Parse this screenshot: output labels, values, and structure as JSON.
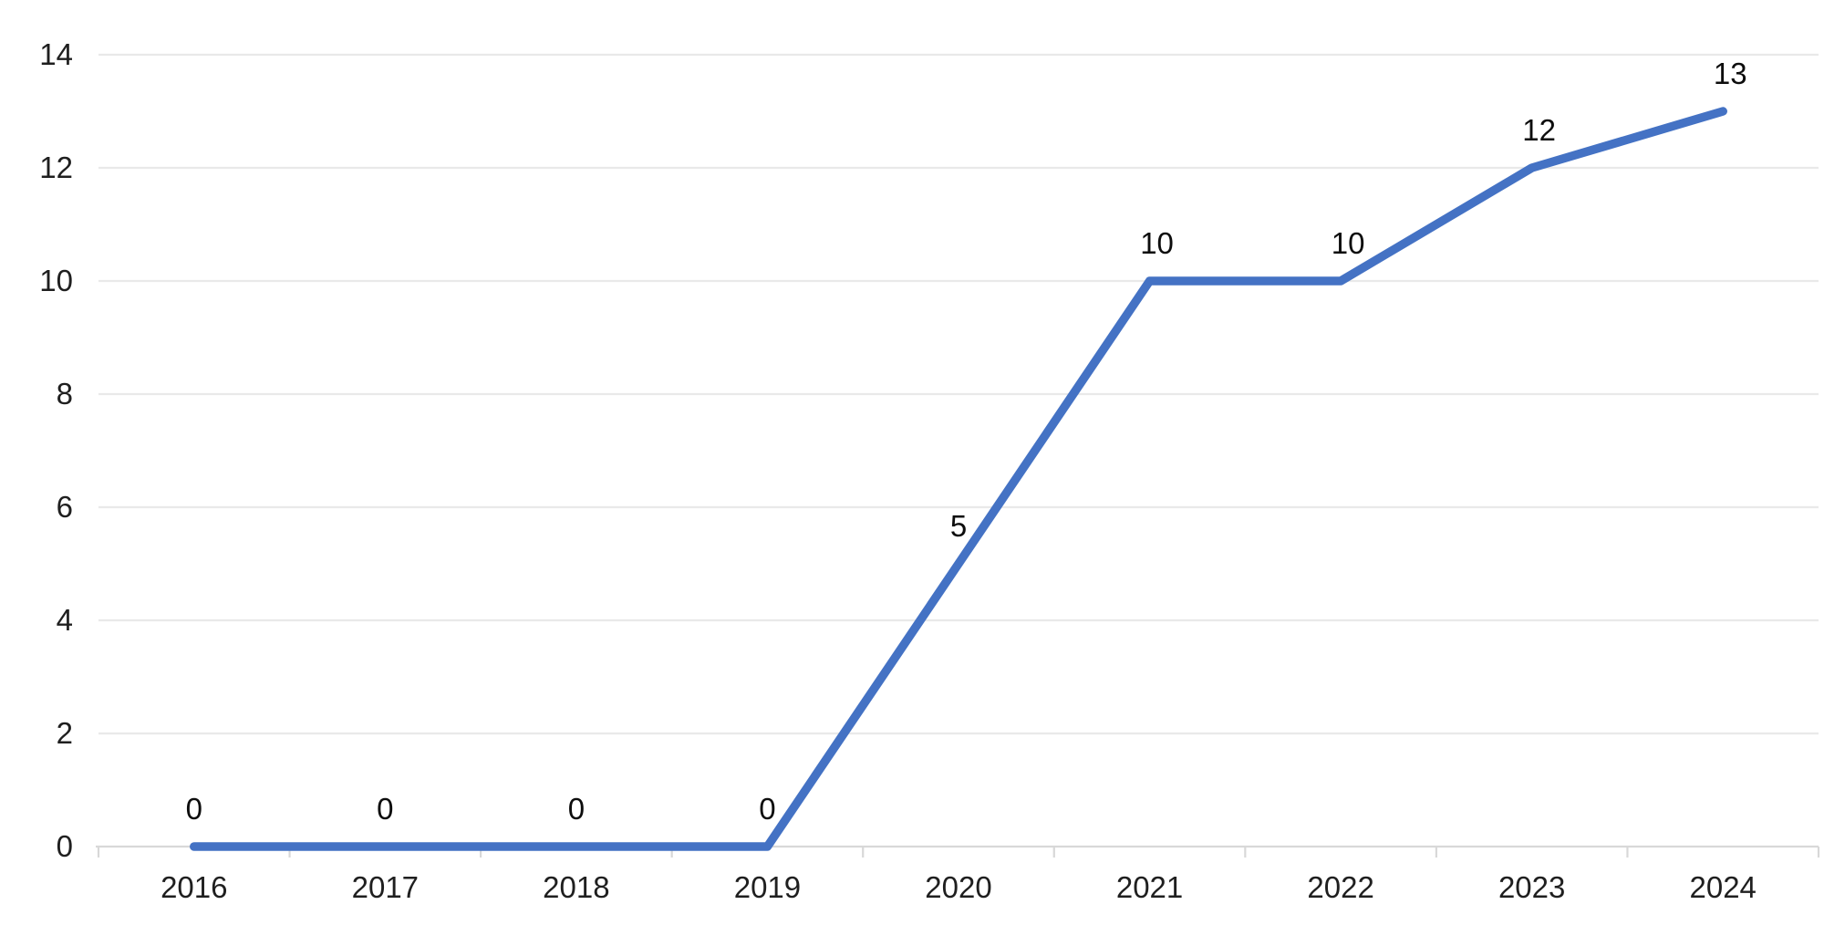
{
  "chart_data": {
    "type": "line",
    "title": "",
    "categories": [
      "2016",
      "2017",
      "2018",
      "2019",
      "2020",
      "2021",
      "2022",
      "2023",
      "2024"
    ],
    "values": [
      0,
      0,
      0,
      0,
      5,
      10,
      10,
      12,
      13
    ],
    "data_labels": [
      "0",
      "0",
      "0",
      "0",
      "5",
      "10",
      "10",
      "12",
      "13"
    ],
    "xlabel": "",
    "ylabel": "",
    "y_ticks": [
      0,
      2,
      4,
      6,
      8,
      10,
      12,
      14
    ],
    "ylim": [
      0,
      14
    ],
    "grid": true,
    "legend_position": "none",
    "colors": {
      "line": "#4472C4",
      "gridline": "#E9E9E9",
      "axis": "#D8D8D8",
      "tick": "#D8D8D8",
      "text": "#1f1f1f",
      "background": "#ffffff"
    }
  }
}
